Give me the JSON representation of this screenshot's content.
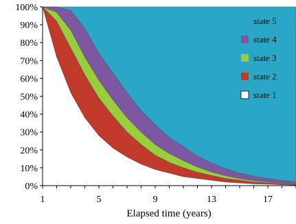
{
  "chart_data": {
    "type": "area",
    "stacked": true,
    "xlabel": "Elapsed time (years)",
    "ylabel": "",
    "xlim": [
      1,
      19
    ],
    "ylim": [
      0,
      100
    ],
    "x_ticks": [
      1,
      5,
      9,
      13,
      17
    ],
    "y_ticks": [
      {
        "value": 0,
        "label": "0%"
      },
      {
        "value": 10,
        "label": "10%"
      },
      {
        "value": 20,
        "label": "20%"
      },
      {
        "value": 30,
        "label": "30%"
      },
      {
        "value": 40,
        "label": "40%"
      },
      {
        "value": 50,
        "label": "50%"
      },
      {
        "value": 60,
        "label": "60%"
      },
      {
        "value": 70,
        "label": "70%"
      },
      {
        "value": 80,
        "label": "80%"
      },
      {
        "value": 90,
        "label": "90%"
      },
      {
        "value": 100,
        "label": "100%"
      }
    ],
    "legend_position": "top-right",
    "grid": false,
    "x": [
      1,
      2,
      3,
      4,
      5,
      6,
      7,
      8,
      9,
      10,
      11,
      12,
      13,
      14,
      15,
      16,
      17,
      18,
      19
    ],
    "series": [
      {
        "name": "state 1",
        "color": "#ffffff",
        "values": [
          100,
          72,
          52,
          38,
          28,
          21,
          16,
          12,
          9,
          7,
          5,
          4,
          3,
          2,
          1.5,
          1,
          0.8,
          0.5,
          0.3
        ]
      },
      {
        "name": "state 2",
        "color": "#c0392b",
        "values": [
          0,
          20,
          25,
          24,
          21,
          18,
          14,
          11,
          8,
          6,
          5,
          3.5,
          2.7,
          2,
          1.5,
          1,
          0.7,
          0.5,
          0.4
        ]
      },
      {
        "name": "state 3",
        "color": "#9acd3c",
        "values": [
          0,
          5,
          10,
          10,
          10,
          9,
          8,
          7,
          6,
          5,
          4,
          3,
          2,
          1.5,
          1,
          0.8,
          0.5,
          0.4,
          0.3
        ]
      },
      {
        "name": "state 4",
        "color": "#7e57a3",
        "values": [
          0,
          3,
          11,
          16,
          15,
          15,
          14,
          12,
          11,
          9,
          8,
          6,
          5,
          4,
          3,
          2.5,
          2,
          1.5,
          1.2
        ]
      },
      {
        "name": "state 5",
        "color": "#2aa7c6",
        "values": [
          0,
          0,
          2,
          12,
          26,
          37,
          48,
          58,
          66,
          73,
          78,
          83.5,
          87.3,
          90.5,
          93,
          94.7,
          96,
          97.1,
          97.8
        ]
      }
    ]
  }
}
